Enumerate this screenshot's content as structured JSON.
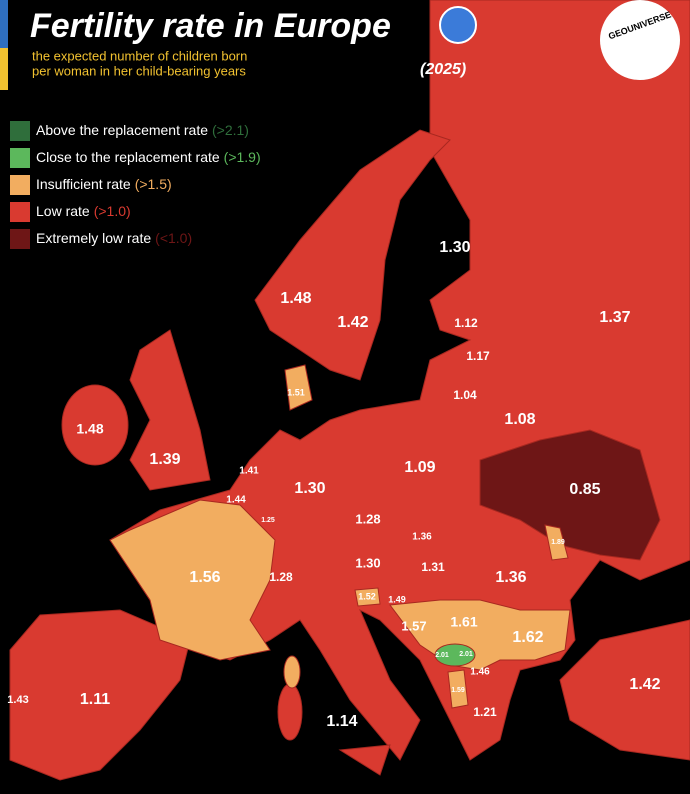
{
  "header": {
    "title": "Fertility rate in Europe",
    "subtitle_lines": [
      "the expected number of children born",
      "per woman in her child-bearing years"
    ],
    "year": "(2025)",
    "brand": "GEOUNIVERSE"
  },
  "legend": [
    {
      "label": "Above the replacement rate",
      "threshold": "(>2.1)",
      "color": "#2f6e3b"
    },
    {
      "label": "Close to the replacement rate",
      "threshold": "(>1.9)",
      "color": "#5cb85c"
    },
    {
      "label": "Insufficient rate",
      "threshold": "(>1.5)",
      "color": "#f2ad60"
    },
    {
      "label": "Low rate",
      "threshold": "(>1.0)",
      "color": "#d93a30"
    },
    {
      "label": "Extremely low rate",
      "threshold": "(<1.0)",
      "color": "#6e1616"
    }
  ],
  "labels": [
    "1.30",
    "1.48",
    "1.42",
    "1.12",
    "1.37",
    "1.17",
    "1.04",
    "1.51",
    "1.08",
    "1.48",
    "1.39",
    "1.09",
    "1.41",
    "0.85",
    "1.30",
    "1.44",
    "1.25",
    "1.28",
    "1.36",
    "1.89",
    "1.56",
    "1.28",
    "1.30",
    "1.31",
    "1.36",
    "1.52",
    "1.49",
    "1.57",
    "1.61",
    "1.62",
    "2.01",
    "2.01",
    "1.46",
    "1.42",
    "1.43",
    "1.11",
    "1.59",
    "1.21",
    "1.14"
  ]
}
